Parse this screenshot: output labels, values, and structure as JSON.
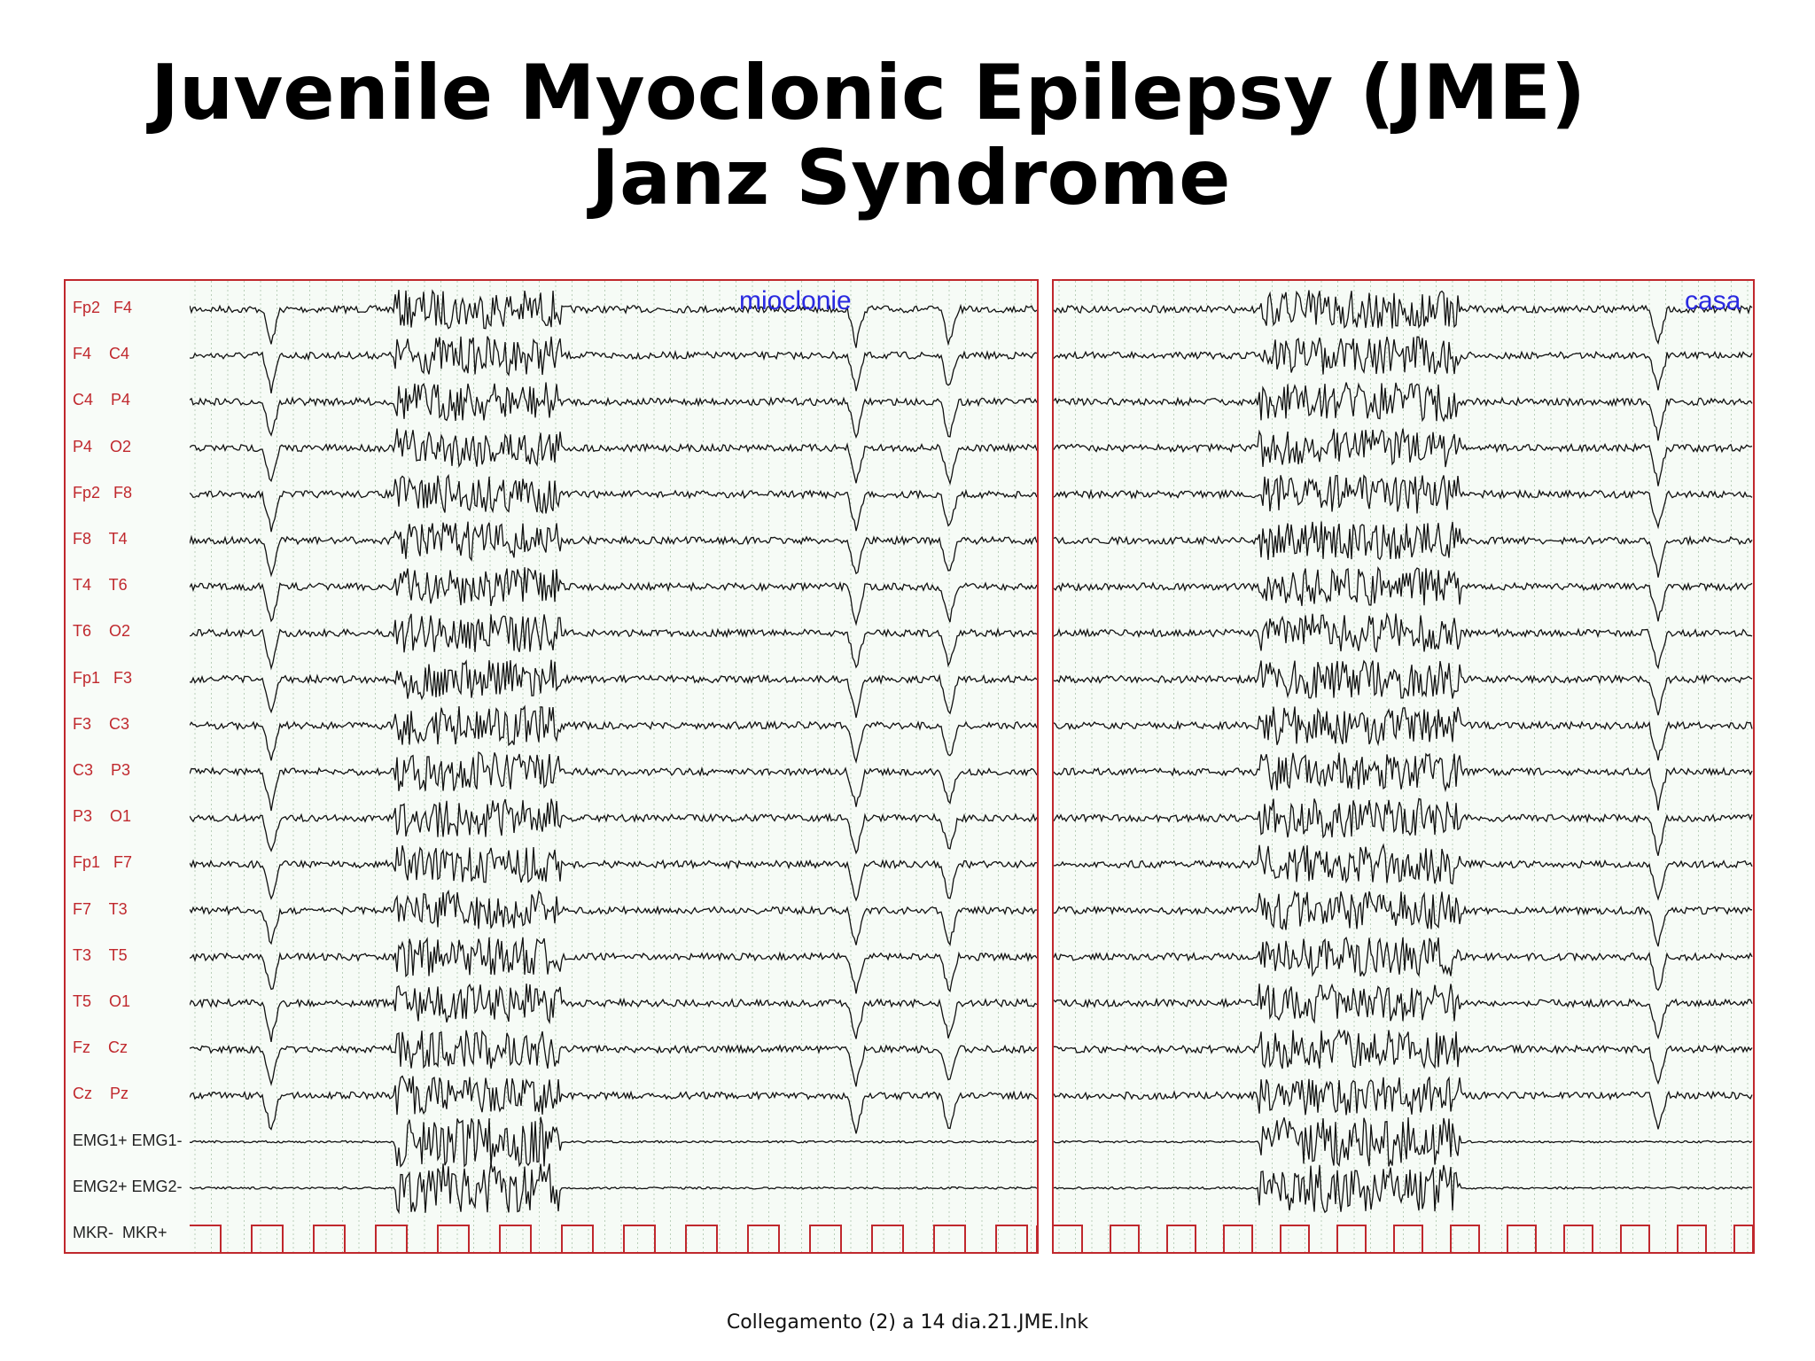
{
  "slide": {
    "title_line1": "Juvenile Myoclonic Epilepsy (JME)",
    "title_line2": "Janz Syndrome",
    "footer": "Collegamento (2) a 14 dia.21.JME.lnk"
  },
  "eeg": {
    "channels": [
      "Fp2   F4",
      "F4    C4",
      "C4    P4",
      "P4    O2",
      "Fp2   F8",
      "F8    T4",
      "T4    T6",
      "T6    O2",
      "Fp1   F3",
      "F3    C3",
      "C3    P3",
      "P3    O1",
      "Fp1   F7",
      "F7    T3",
      "T3    T5",
      "T5    O1",
      "Fz    Cz",
      "Cz    Pz",
      "EMG1+ EMG1-",
      "EMG2+ EMG2-",
      "MKR-  MKR+"
    ],
    "left_annotation": "mioclonie",
    "right_annotation": "casa",
    "colors": {
      "border": "#c0282d",
      "label": "#c0282d",
      "trace": "#111111",
      "marker": "#c0282d",
      "annotation": "#2a2ae0"
    }
  }
}
